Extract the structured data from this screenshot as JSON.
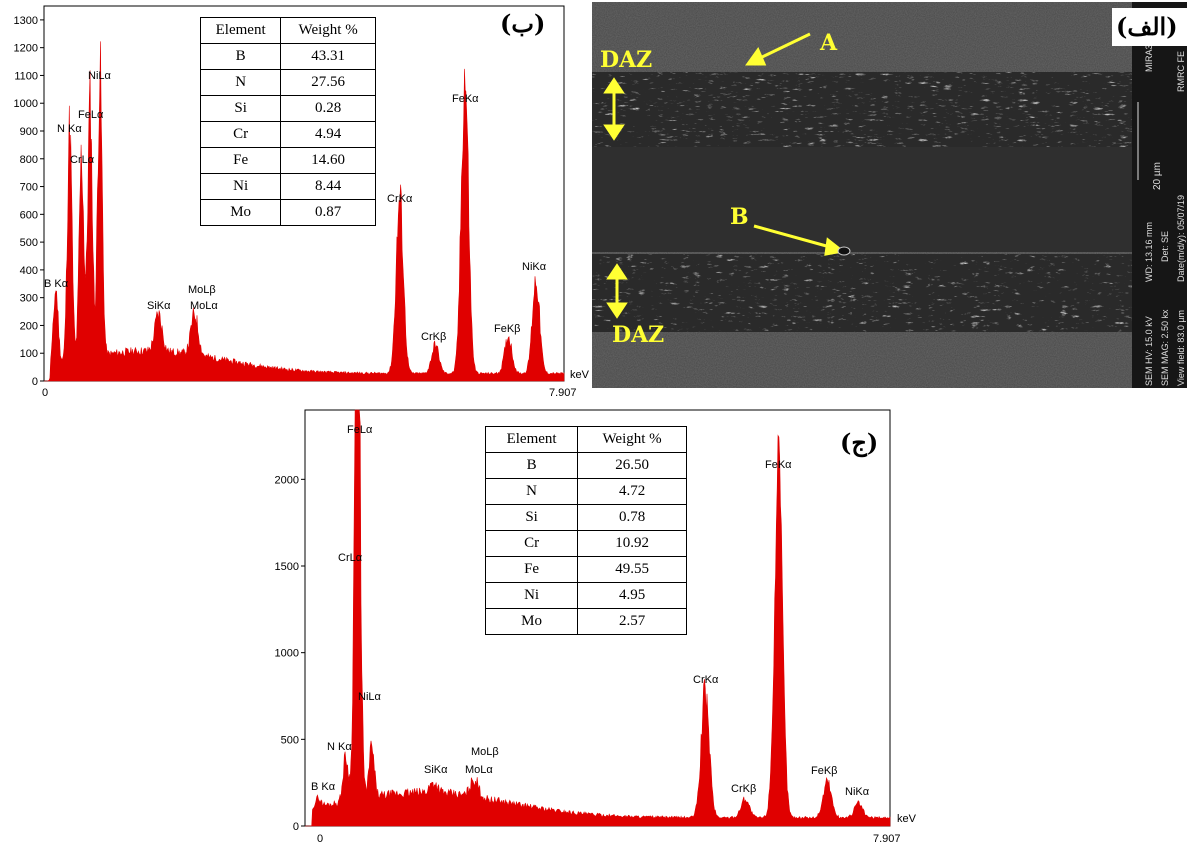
{
  "chart_data": [
    {
      "type": "line",
      "panel": "(ب)",
      "x_unit": "keV",
      "x_tick_labels": [
        "0",
        "7.907"
      ],
      "xlim": [
        0,
        7.907
      ],
      "ylim": [
        0,
        1350
      ],
      "y_ticks": [
        0,
        100,
        200,
        300,
        400,
        500,
        600,
        700,
        800,
        900,
        1000,
        1100,
        1200,
        1300
      ],
      "peaks": [
        {
          "label": "B Kα",
          "x": 0.18,
          "y": 330
        },
        {
          "label": "N Kα",
          "x": 0.39,
          "y": 905
        },
        {
          "label": "CrLα",
          "x": 0.57,
          "y": 800
        },
        {
          "label": "FeLα",
          "x": 0.7,
          "y": 990
        },
        {
          "label": "NiLα",
          "x": 0.85,
          "y": 1100
        },
        {
          "label": "SiKα",
          "x": 1.74,
          "y": 240
        },
        {
          "label": "MoLβ MoLα",
          "x": 2.29,
          "y": 240
        },
        {
          "label": "CrKα",
          "x": 5.41,
          "y": 650
        },
        {
          "label": "CrKβ",
          "x": 5.95,
          "y": 130
        },
        {
          "label": "FeKα",
          "x": 6.4,
          "y": 1095
        },
        {
          "label": "FeKβ",
          "x": 7.06,
          "y": 160
        },
        {
          "label": "NiKα",
          "x": 7.48,
          "y": 365
        }
      ],
      "peak_texts": [
        "B Kα",
        "N Kα",
        "CrLα",
        "FeLα",
        "NiLα",
        "SiKα",
        "MoLβ",
        "MoLα",
        "CrKα",
        "CrKβ",
        "FeKα",
        "FeKβ",
        "NiKα"
      ],
      "table": {
        "headers": [
          "Element",
          "Weight %"
        ],
        "rows": [
          [
            "B",
            "43.31"
          ],
          [
            "N",
            "27.56"
          ],
          [
            "Si",
            "0.28"
          ],
          [
            "Cr",
            "4.94"
          ],
          [
            "Fe",
            "14.60"
          ],
          [
            "Ni",
            "8.44"
          ],
          [
            "Mo",
            "0.87"
          ]
        ]
      }
    },
    {
      "type": "line",
      "panel": "(ج)",
      "x_unit": "keV",
      "x_tick_labels": [
        "0",
        "7.907"
      ],
      "xlim": [
        0,
        7.907
      ],
      "ylim": [
        0,
        2400
      ],
      "y_ticks": [
        0,
        500,
        1000,
        1500,
        2000
      ],
      "peaks": [
        {
          "label": "B Kα",
          "x": 0.18,
          "y": 160
        },
        {
          "label": "N Kα",
          "x": 0.55,
          "y": 400
        },
        {
          "label": "CrLα",
          "x": 0.72,
          "y": 1500
        },
        {
          "label": "FeLα",
          "x": 0.7,
          "y": 2170
        },
        {
          "label": "NiLα",
          "x": 0.9,
          "y": 450
        },
        {
          "label": "SiKα",
          "x": 1.74,
          "y": 250
        },
        {
          "label": "MoLβ MoLα",
          "x": 2.29,
          "y": 270
        },
        {
          "label": "CrKα",
          "x": 5.41,
          "y": 770
        },
        {
          "label": "CrKβ",
          "x": 5.95,
          "y": 160
        },
        {
          "label": "FeKα",
          "x": 6.4,
          "y": 1980
        },
        {
          "label": "FeKβ",
          "x": 7.06,
          "y": 260
        },
        {
          "label": "NiKα",
          "x": 7.48,
          "y": 130
        }
      ],
      "peak_texts": [
        "B Kα",
        "N Kα",
        "CrLα",
        "FeLα",
        "NiLα",
        "SiKα",
        "MoLβ",
        "MoLα",
        "CrKα",
        "CrKβ",
        "FeKα",
        "FeKβ",
        "NiKα"
      ],
      "table": {
        "headers": [
          "Element",
          "Weight %"
        ],
        "rows": [
          [
            "B",
            "26.50"
          ],
          [
            "N",
            "4.72"
          ],
          [
            "Si",
            "0.78"
          ],
          [
            "Cr",
            "10.92"
          ],
          [
            "Fe",
            "49.55"
          ],
          [
            "Ni",
            "4.95"
          ],
          [
            "Mo",
            "2.57"
          ]
        ]
      }
    }
  ],
  "sem_image": {
    "panel": "(الف)",
    "labels": {
      "daz_top": "DAZ",
      "daz_bottom": "DAZ",
      "point_a": "A",
      "point_b": "B"
    },
    "scale_bar": "20 µm",
    "info_bar": {
      "hv": "SEM HV: 15.0 kV",
      "wd": "WD: 13.16 mm",
      "mag": "SEM MAG: 2.50 kx",
      "det": "Det: SE",
      "view": "View field: 83.0 µm",
      "date": "Date(m/d/y): 05/07/19",
      "instrument": "MIRA3",
      "lab": "RMRC FE"
    }
  },
  "colors": {
    "spectrum": "#e00000",
    "daz_label": "#ffff33",
    "arrow": "#ffff33",
    "sem_dark": "#3a3a3a"
  }
}
